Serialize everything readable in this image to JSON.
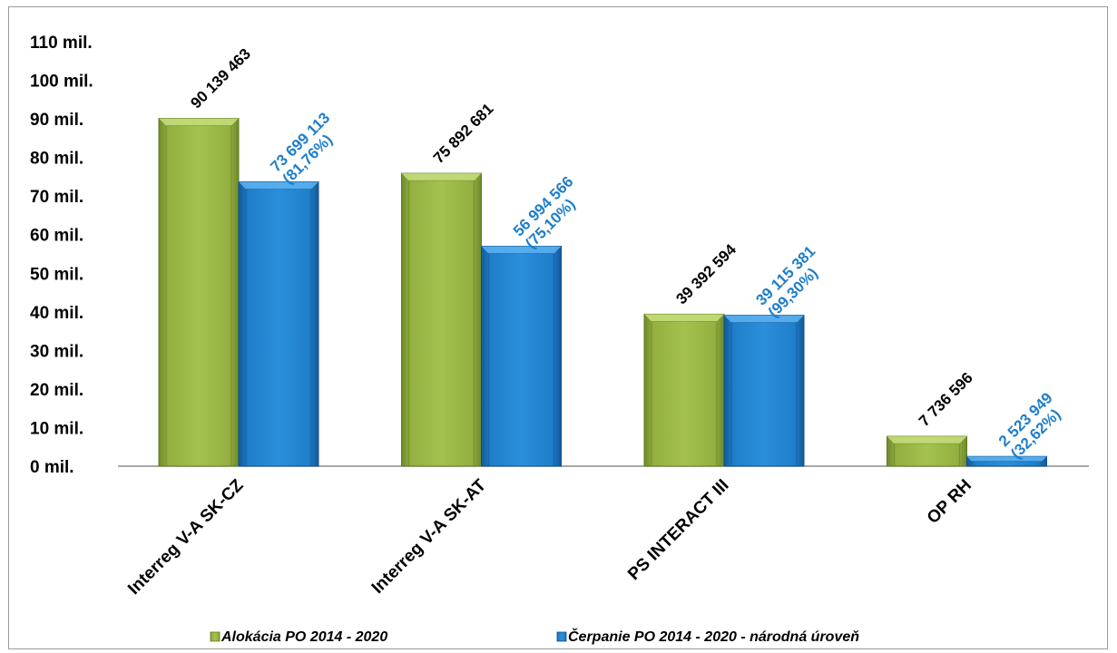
{
  "chart_data": {
    "type": "bar",
    "categories": [
      "Interreg V-A SK-CZ",
      "Interreg V-A SK-AT",
      "PS INTERACT III",
      "OP RH"
    ],
    "series": [
      {
        "name": "Alokácia PO 2014 - 2020",
        "color": "#93b040",
        "values": [
          90139463,
          75892681,
          39392594,
          7736596
        ],
        "labels": [
          [
            "90 139 463"
          ],
          [
            "75 892 681"
          ],
          [
            "39 392 594"
          ],
          [
            "7 736 596"
          ]
        ]
      },
      {
        "name": "Čerpanie PO 2014 - 2020 - národná úroveň",
        "color": "#1f7ec9",
        "values": [
          73699113,
          56994566,
          39115381,
          2523949
        ],
        "labels": [
          [
            "73 699 113",
            "(81,76%)"
          ],
          [
            "56 994 566",
            "(75,10%)"
          ],
          [
            "39 115 381",
            "(99,30%)"
          ],
          [
            "2 523 949",
            "(32,62%)"
          ]
        ]
      }
    ],
    "y_ticks": [
      "0 mil.",
      "10 mil.",
      "20 mil.",
      "30 mil.",
      "40 mil.",
      "50 mil.",
      "60 mil.",
      "70 mil.",
      "80 mil.",
      "90 mil.",
      "100 mil.",
      "110 mil."
    ],
    "ylim": [
      0,
      110000000
    ],
    "grid": false,
    "legend_position": "bottom"
  }
}
